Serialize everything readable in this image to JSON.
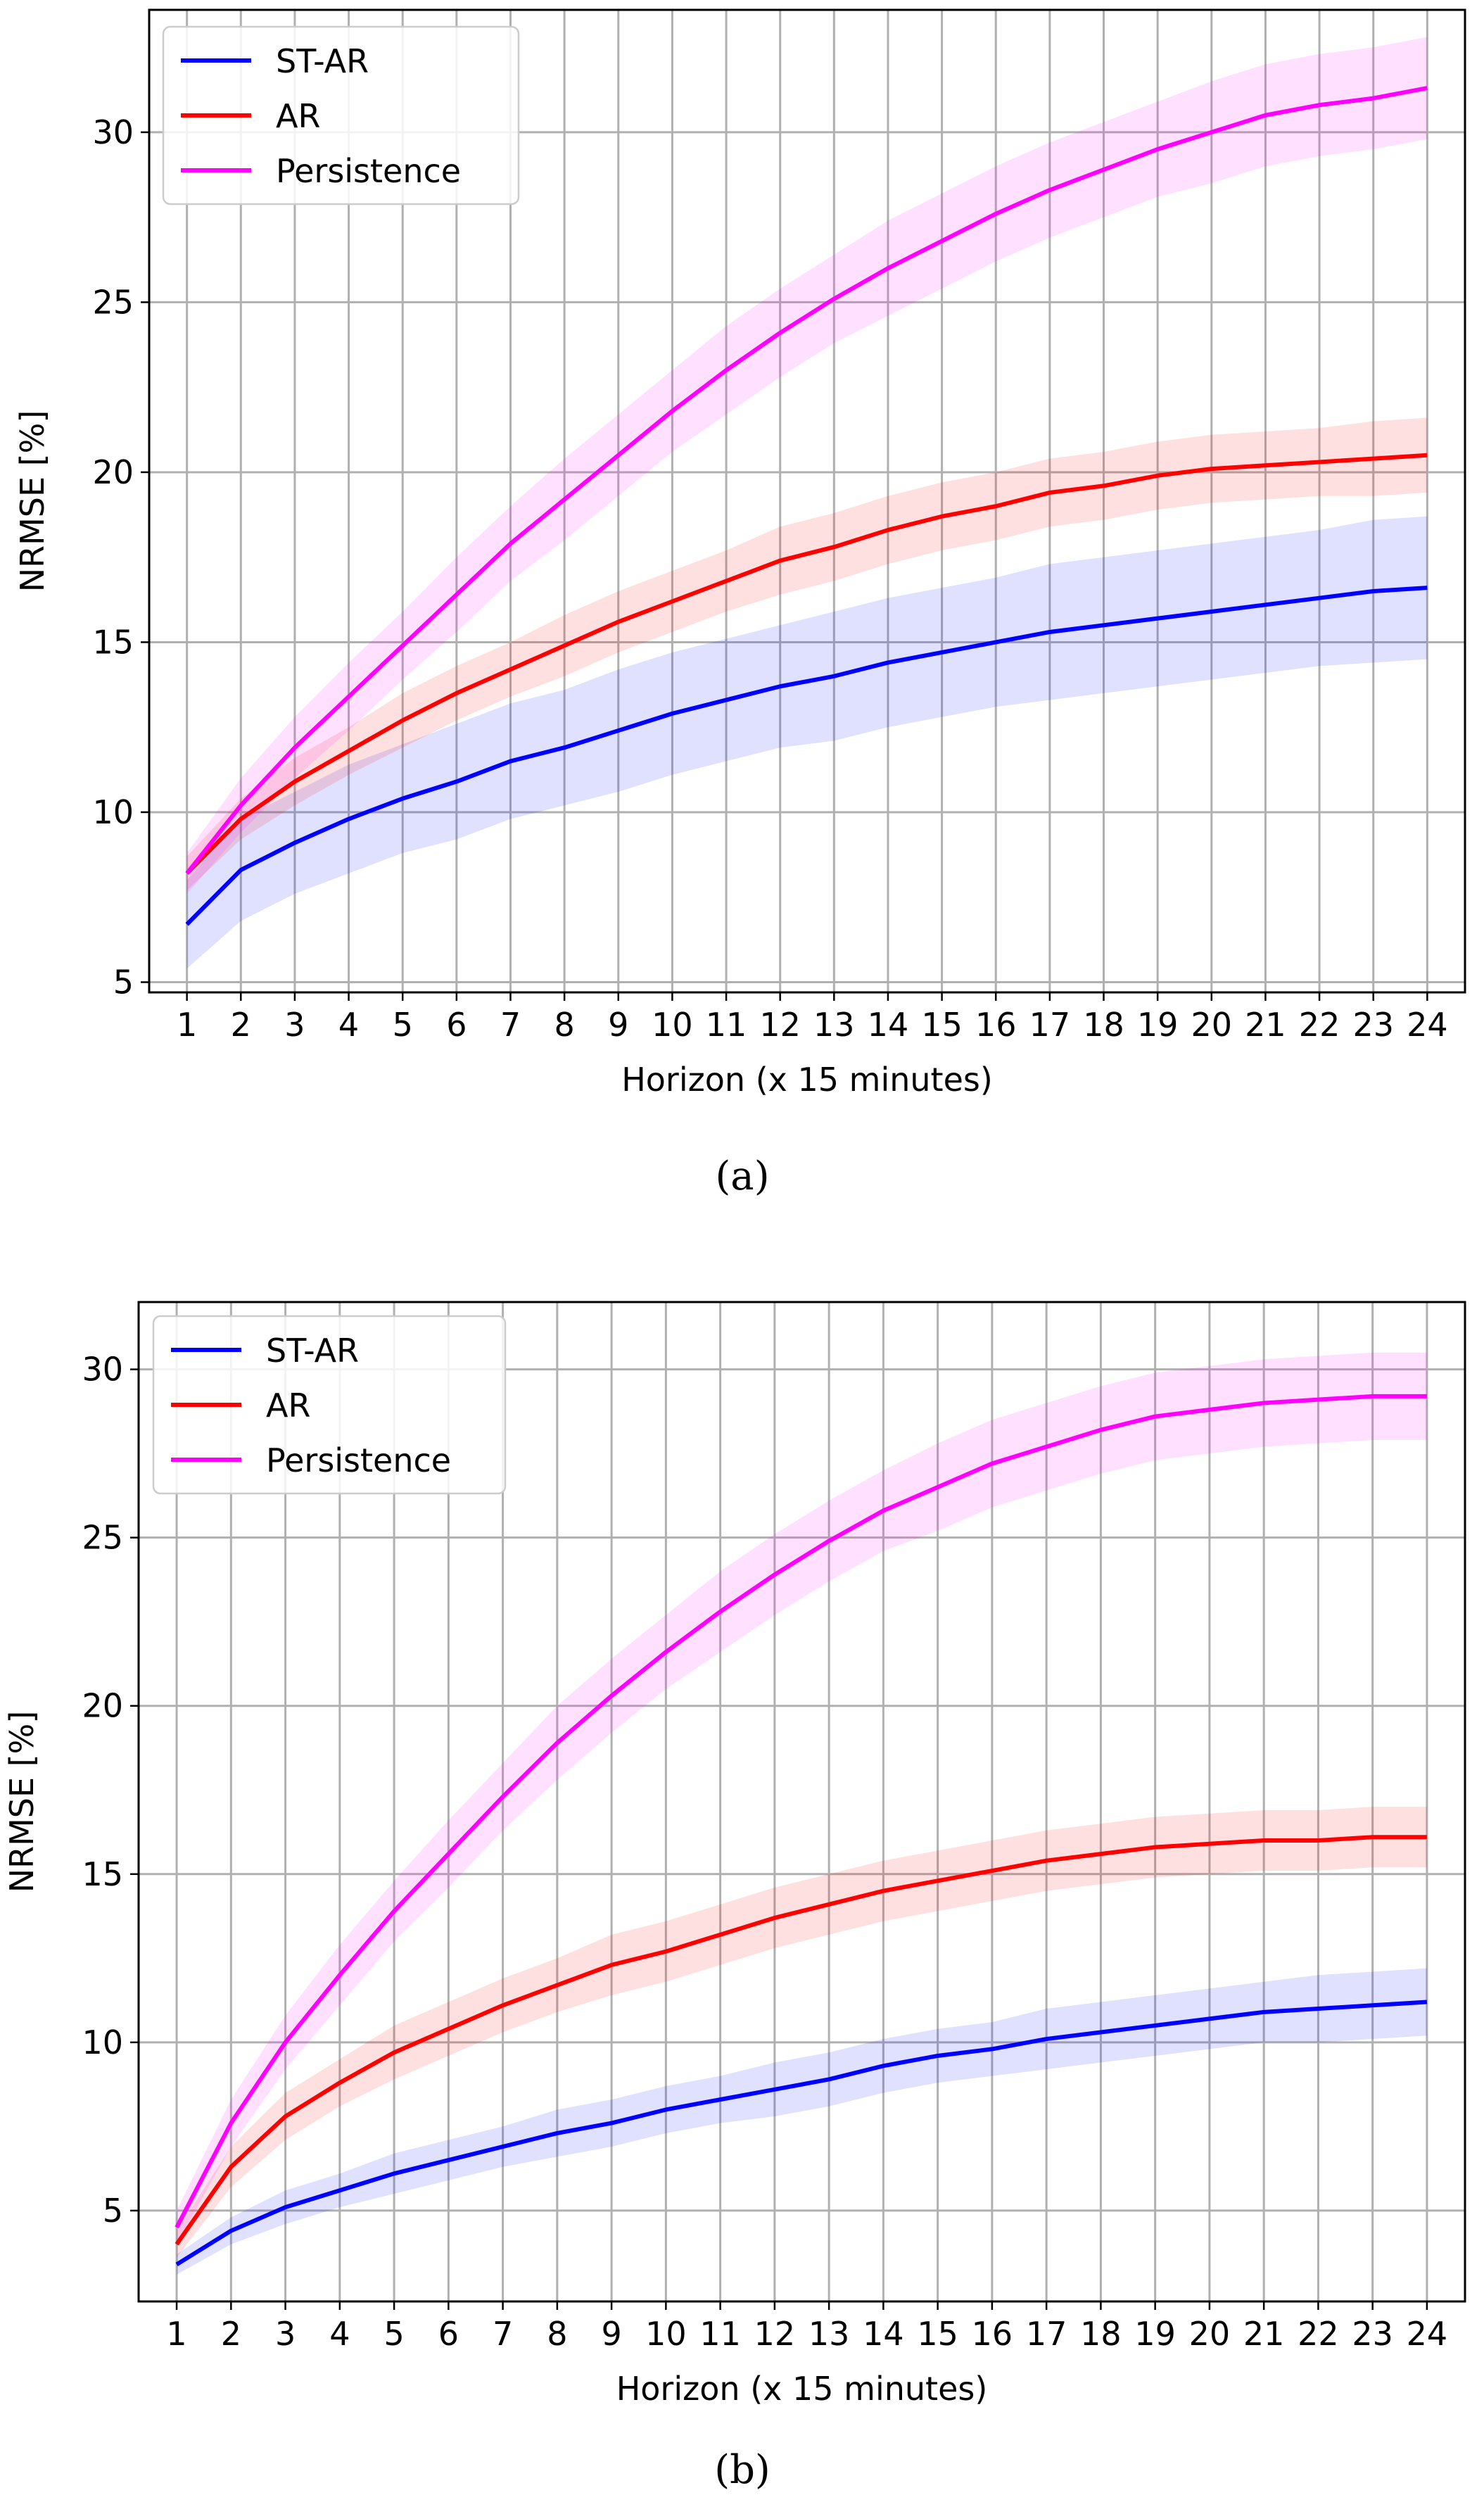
{
  "figure": {
    "captions": [
      "(a)",
      "(b)"
    ]
  },
  "chart_data": [
    {
      "id": "a",
      "type": "line",
      "caption": "(a)",
      "xlabel": "Horizon (x 15 minutes)",
      "ylabel": "NRMSE [%]",
      "x": [
        1,
        2,
        3,
        4,
        5,
        6,
        7,
        8,
        9,
        10,
        11,
        12,
        13,
        14,
        15,
        16,
        17,
        18,
        19,
        20,
        21,
        22,
        23,
        24
      ],
      "xticks": [
        "1",
        "2",
        "3",
        "4",
        "5",
        "6",
        "7",
        "8",
        "9",
        "10",
        "11",
        "12",
        "13",
        "14",
        "15",
        "16",
        "17",
        "18",
        "19",
        "20",
        "21",
        "22",
        "23",
        "24"
      ],
      "ylim": [
        4.7,
        33.6
      ],
      "yticks": [
        5,
        10,
        15,
        20,
        25,
        30
      ],
      "grid": true,
      "legend_position": "top-left",
      "series": [
        {
          "name": "ST-AR",
          "color": "#0000ff",
          "values": [
            6.7,
            8.3,
            9.1,
            9.8,
            10.4,
            10.9,
            11.5,
            11.9,
            12.4,
            12.9,
            13.3,
            13.7,
            14.0,
            14.4,
            14.7,
            15.0,
            15.3,
            15.5,
            15.7,
            15.9,
            16.1,
            16.3,
            16.5,
            16.6
          ],
          "band": [
            1.3,
            1.5,
            1.5,
            1.6,
            1.6,
            1.7,
            1.7,
            1.7,
            1.8,
            1.8,
            1.8,
            1.8,
            1.9,
            1.9,
            1.9,
            1.9,
            2.0,
            2.0,
            2.0,
            2.0,
            2.0,
            2.0,
            2.1,
            2.1
          ]
        },
        {
          "name": "AR",
          "color": "#ff0000",
          "values": [
            8.2,
            9.8,
            10.9,
            11.8,
            12.7,
            13.5,
            14.2,
            14.9,
            15.6,
            16.2,
            16.8,
            17.4,
            17.8,
            18.3,
            18.7,
            19.0,
            19.4,
            19.6,
            19.9,
            20.1,
            20.2,
            20.3,
            20.4,
            20.5
          ],
          "band": [
            0.5,
            0.6,
            0.7,
            0.7,
            0.8,
            0.8,
            0.8,
            0.9,
            0.9,
            0.9,
            0.9,
            1.0,
            1.0,
            1.0,
            1.0,
            1.0,
            1.0,
            1.0,
            1.0,
            1.0,
            1.0,
            1.0,
            1.1,
            1.1
          ]
        },
        {
          "name": "Persistence",
          "color": "#ff00ff",
          "values": [
            8.2,
            10.2,
            11.9,
            13.4,
            14.9,
            16.4,
            17.9,
            19.2,
            20.5,
            21.8,
            23.0,
            24.1,
            25.1,
            26.0,
            26.8,
            27.6,
            28.3,
            28.9,
            29.5,
            30.0,
            30.5,
            30.8,
            31.0,
            31.3
          ],
          "band": [
            0.6,
            0.8,
            0.9,
            1.0,
            1.0,
            1.1,
            1.1,
            1.2,
            1.2,
            1.2,
            1.3,
            1.3,
            1.3,
            1.4,
            1.4,
            1.4,
            1.4,
            1.4,
            1.4,
            1.5,
            1.5,
            1.5,
            1.5,
            1.5
          ]
        }
      ]
    },
    {
      "id": "b",
      "type": "line",
      "caption": "(b)",
      "xlabel": "Horizon (x 15 minutes)",
      "ylabel": "NRMSE [%]",
      "x": [
        1,
        2,
        3,
        4,
        5,
        6,
        7,
        8,
        9,
        10,
        11,
        12,
        13,
        14,
        15,
        16,
        17,
        18,
        19,
        20,
        21,
        22,
        23,
        24
      ],
      "xticks": [
        "1",
        "2",
        "3",
        "4",
        "5",
        "6",
        "7",
        "8",
        "9",
        "10",
        "11",
        "12",
        "13",
        "14",
        "15",
        "16",
        "17",
        "18",
        "19",
        "20",
        "21",
        "22",
        "23",
        "24"
      ],
      "ylim": [
        2.3,
        32.0
      ],
      "yticks": [
        5,
        10,
        15,
        20,
        25,
        30
      ],
      "grid": true,
      "legend_position": "top-left",
      "series": [
        {
          "name": "ST-AR",
          "color": "#0000ff",
          "values": [
            3.4,
            4.4,
            5.1,
            5.6,
            6.1,
            6.5,
            6.9,
            7.3,
            7.6,
            8.0,
            8.3,
            8.6,
            8.9,
            9.3,
            9.6,
            9.8,
            10.1,
            10.3,
            10.5,
            10.7,
            10.9,
            11.0,
            11.1,
            11.2
          ],
          "band": [
            0.3,
            0.4,
            0.5,
            0.5,
            0.6,
            0.6,
            0.6,
            0.7,
            0.7,
            0.7,
            0.7,
            0.8,
            0.8,
            0.8,
            0.8,
            0.8,
            0.9,
            0.9,
            0.9,
            0.9,
            0.9,
            1.0,
            1.0,
            1.0
          ]
        },
        {
          "name": "AR",
          "color": "#ff0000",
          "values": [
            4.0,
            6.3,
            7.8,
            8.8,
            9.7,
            10.4,
            11.1,
            11.7,
            12.3,
            12.7,
            13.2,
            13.7,
            14.1,
            14.5,
            14.8,
            15.1,
            15.4,
            15.6,
            15.8,
            15.9,
            16.0,
            16.0,
            16.1,
            16.1
          ],
          "band": [
            0.4,
            0.6,
            0.7,
            0.7,
            0.8,
            0.8,
            0.8,
            0.8,
            0.9,
            0.9,
            0.9,
            0.9,
            0.9,
            0.9,
            0.9,
            0.9,
            0.9,
            0.9,
            0.9,
            0.9,
            0.9,
            0.9,
            0.9,
            0.9
          ]
        },
        {
          "name": "Persistence",
          "color": "#ff00ff",
          "values": [
            4.5,
            7.6,
            10.0,
            12.0,
            13.9,
            15.6,
            17.3,
            18.9,
            20.3,
            21.6,
            22.8,
            23.9,
            24.9,
            25.8,
            26.5,
            27.2,
            27.7,
            28.2,
            28.6,
            28.8,
            29.0,
            29.1,
            29.2,
            29.2
          ],
          "band": [
            0.5,
            0.7,
            0.8,
            0.9,
            0.9,
            1.0,
            1.0,
            1.1,
            1.1,
            1.1,
            1.2,
            1.2,
            1.2,
            1.2,
            1.3,
            1.3,
            1.3,
            1.3,
            1.3,
            1.3,
            1.3,
            1.3,
            1.3,
            1.3
          ]
        }
      ]
    }
  ]
}
